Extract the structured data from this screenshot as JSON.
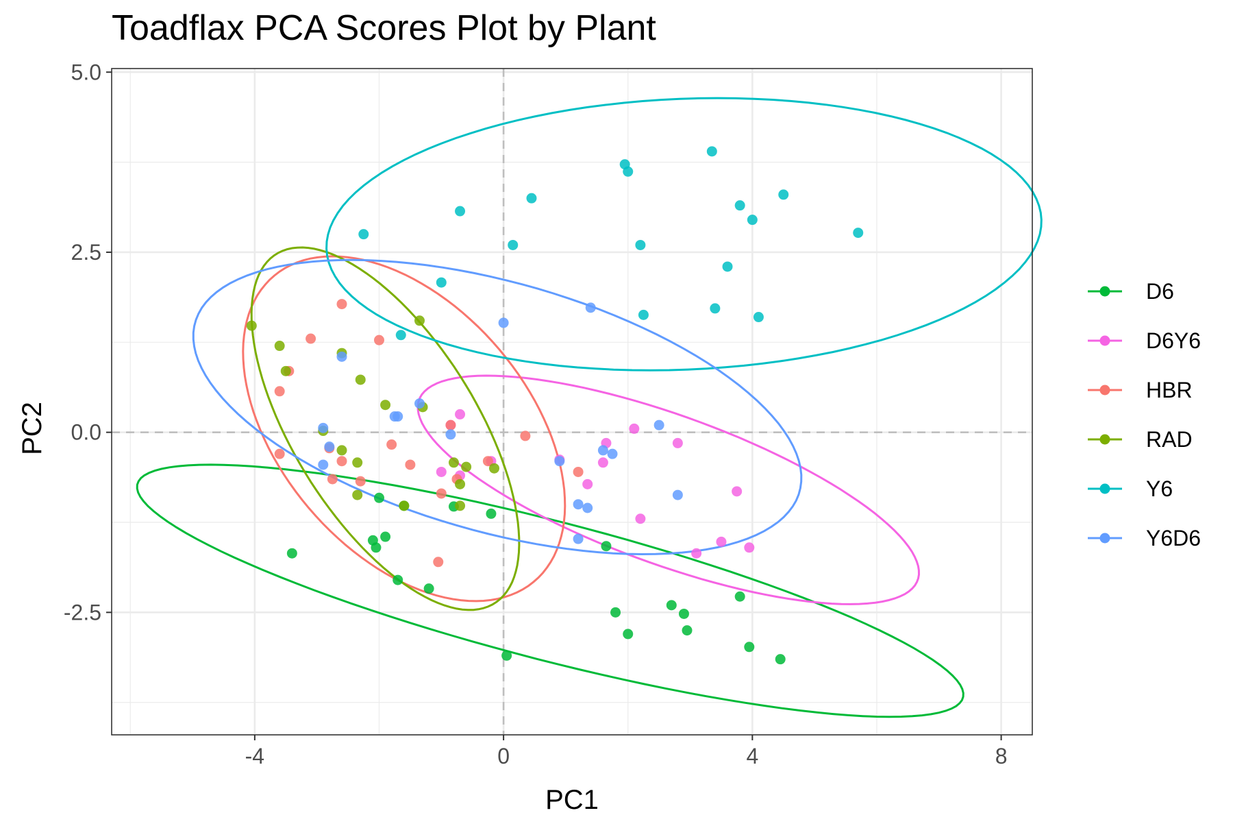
{
  "chart_data": {
    "type": "scatter",
    "title": "Toadflax PCA Scores Plot by Plant",
    "xlabel": "PC1",
    "ylabel": "PC2",
    "xlim": [
      -6.3,
      8.5
    ],
    "ylim": [
      -4.2,
      5.05
    ],
    "x_ticks": [
      -4,
      0,
      4,
      8
    ],
    "x_tick_labels": [
      "-4",
      "0",
      "4",
      "8"
    ],
    "y_ticks": [
      -2.5,
      0,
      2.5,
      5
    ],
    "y_tick_labels": [
      "-2.5",
      "0.0",
      "2.5",
      "5.0"
    ],
    "x_minor_grid": [
      -6,
      -2,
      2,
      6
    ],
    "y_minor_grid": [
      -3.75,
      -1.25,
      1.25,
      3.75
    ],
    "grid": true,
    "reference_lines": {
      "x": 0,
      "y": 0,
      "style": "dashed"
    },
    "legend": {
      "position": "right",
      "entries": [
        "D6",
        "D6Y6",
        "HBR",
        "RAD",
        "Y6",
        "Y6D6"
      ]
    },
    "series": [
      {
        "name": "D6",
        "color": "#00BA38",
        "points": [
          [
            -3.4,
            -1.68
          ],
          [
            -2.0,
            -0.91
          ],
          [
            -1.9,
            -1.45
          ],
          [
            -2.05,
            -1.6
          ],
          [
            -2.1,
            -1.5
          ],
          [
            -1.6,
            -1.02
          ],
          [
            -1.7,
            -2.05
          ],
          [
            -1.2,
            -2.17
          ],
          [
            -0.8,
            -1.03
          ],
          [
            -0.2,
            -1.13
          ],
          [
            0.05,
            -3.1
          ],
          [
            1.65,
            -1.58
          ],
          [
            1.8,
            -2.5
          ],
          [
            2.0,
            -2.8
          ],
          [
            2.7,
            -2.4
          ],
          [
            2.9,
            -2.52
          ],
          [
            2.95,
            -2.75
          ],
          [
            3.8,
            -2.28
          ],
          [
            3.95,
            -2.98
          ],
          [
            4.45,
            -3.15
          ]
        ],
        "ellipse": {
          "cx": 0.75,
          "cy": -2.2,
          "rx": 6.8,
          "ry": 0.97,
          "angle_deg": -12.5
        }
      },
      {
        "name": "D6Y6",
        "color": "#F564E3",
        "points": [
          [
            -0.85,
            0.1
          ],
          [
            -0.7,
            0.25
          ],
          [
            -1.0,
            -0.55
          ],
          [
            -0.7,
            -0.6
          ],
          [
            -0.2,
            -0.4
          ],
          [
            0.9,
            -0.38
          ],
          [
            1.35,
            -0.72
          ],
          [
            1.65,
            -0.15
          ],
          [
            1.6,
            -0.42
          ],
          [
            2.1,
            0.05
          ],
          [
            2.8,
            -0.15
          ],
          [
            2.2,
            -1.2
          ],
          [
            3.1,
            -1.68
          ],
          [
            3.5,
            -1.52
          ],
          [
            3.75,
            -0.82
          ],
          [
            3.95,
            -1.6
          ]
        ],
        "ellipse": {
          "cx": 2.65,
          "cy": -0.8,
          "rx": 4.2,
          "ry": 1.05,
          "angle_deg": -17
        }
      },
      {
        "name": "HBR",
        "color": "#F8766D",
        "points": [
          [
            -2.6,
            1.78
          ],
          [
            -3.1,
            1.3
          ],
          [
            -2.0,
            1.28
          ],
          [
            -3.6,
            0.57
          ],
          [
            -3.45,
            0.85
          ],
          [
            -3.6,
            -0.3
          ],
          [
            -2.8,
            -0.22
          ],
          [
            -2.6,
            -0.4
          ],
          [
            -2.75,
            -0.65
          ],
          [
            -2.3,
            -0.68
          ],
          [
            -1.8,
            -0.17
          ],
          [
            -1.5,
            -0.45
          ],
          [
            -0.85,
            0.1
          ],
          [
            -1.0,
            -0.85
          ],
          [
            -0.75,
            -0.65
          ],
          [
            -0.25,
            -0.4
          ],
          [
            0.35,
            -0.05
          ],
          [
            1.2,
            -0.55
          ],
          [
            -1.05,
            -1.8
          ]
        ],
        "ellipse": {
          "cx": -1.6,
          "cy": 0.05,
          "rx": 3.0,
          "ry": 1.85,
          "angle_deg": -40
        }
      },
      {
        "name": "RAD",
        "color": "#7CAE00",
        "points": [
          [
            -4.05,
            1.48
          ],
          [
            -3.6,
            1.2
          ],
          [
            -3.5,
            0.85
          ],
          [
            -2.6,
            1.1
          ],
          [
            -2.3,
            0.73
          ],
          [
            -1.9,
            0.38
          ],
          [
            -1.35,
            1.55
          ],
          [
            -1.3,
            0.35
          ],
          [
            -2.9,
            0.02
          ],
          [
            -2.6,
            -0.25
          ],
          [
            -2.35,
            -0.42
          ],
          [
            -0.8,
            -0.42
          ],
          [
            -0.6,
            -0.48
          ],
          [
            -0.15,
            -0.5
          ],
          [
            -0.7,
            -0.72
          ],
          [
            -2.35,
            -0.87
          ],
          [
            -1.6,
            -1.02
          ],
          [
            -0.7,
            -1.02
          ]
        ],
        "ellipse": {
          "cx": -1.9,
          "cy": 0.05,
          "rx": 3.0,
          "ry": 1.4,
          "angle_deg": -52
        }
      },
      {
        "name": "Y6",
        "color": "#00BFC4",
        "points": [
          [
            -2.25,
            2.75
          ],
          [
            -0.7,
            3.07
          ],
          [
            0.45,
            3.25
          ],
          [
            0.15,
            2.6
          ],
          [
            -1.0,
            2.08
          ],
          [
            -1.65,
            1.35
          ],
          [
            1.95,
            3.72
          ],
          [
            2.0,
            3.62
          ],
          [
            2.2,
            2.6
          ],
          [
            2.25,
            1.63
          ],
          [
            3.35,
            3.9
          ],
          [
            3.4,
            1.72
          ],
          [
            3.8,
            3.15
          ],
          [
            3.6,
            2.3
          ],
          [
            4.0,
            2.95
          ],
          [
            4.1,
            1.6
          ],
          [
            4.5,
            3.3
          ],
          [
            5.7,
            2.77
          ]
        ],
        "ellipse": {
          "cx": 2.9,
          "cy": 2.75,
          "rx": 5.75,
          "ry": 1.88,
          "angle_deg": 2
        }
      },
      {
        "name": "Y6D6",
        "color": "#619CFF",
        "points": [
          [
            -2.6,
            1.05
          ],
          [
            -1.35,
            0.4
          ],
          [
            -1.7,
            0.22
          ],
          [
            -1.75,
            0.22
          ],
          [
            -2.9,
            0.06
          ],
          [
            -2.8,
            -0.2
          ],
          [
            -2.9,
            -0.45
          ],
          [
            -0.85,
            -0.03
          ],
          [
            0.0,
            1.52
          ],
          [
            1.4,
            1.73
          ],
          [
            2.5,
            0.1
          ],
          [
            0.9,
            -0.4
          ],
          [
            1.6,
            -0.25
          ],
          [
            1.75,
            -0.3
          ],
          [
            1.2,
            -1.0
          ],
          [
            1.35,
            -1.05
          ],
          [
            1.2,
            -1.48
          ],
          [
            2.8,
            -0.87
          ]
        ],
        "ellipse": {
          "cx": -0.1,
          "cy": 0.35,
          "rx": 5.0,
          "ry": 1.75,
          "angle_deg": -13
        }
      }
    ]
  }
}
